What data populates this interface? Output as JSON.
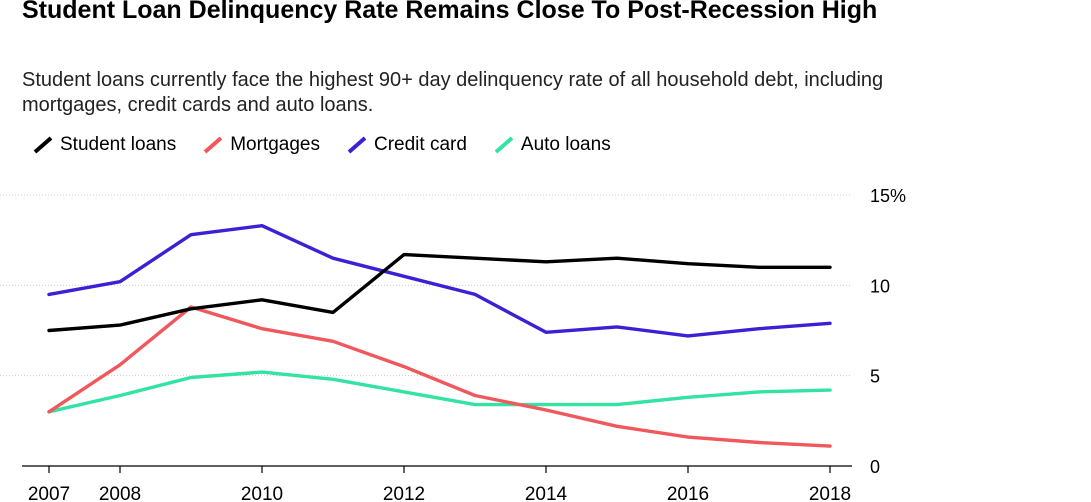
{
  "chart_data": {
    "type": "line",
    "title": "Student Loan Delinquency Rate Remains Close To Post-Recession High",
    "subtitle": "Student loans currently face the highest 90+ day delinquency rate of all household debt, including mortgages, credit cards and auto loans.",
    "x": [
      2007,
      2008,
      2009,
      2010,
      2011,
      2012,
      2013,
      2014,
      2015,
      2016,
      2017,
      2018
    ],
    "x_tick_labels": [
      "2007",
      "2008",
      "2010",
      "2012",
      "2014",
      "2016",
      "2018"
    ],
    "y_tick_labels": [
      "15%",
      "10",
      "5",
      "0"
    ],
    "ylim": [
      0,
      15
    ],
    "xlabel": "",
    "ylabel": "",
    "grid": true,
    "legend_position": "top-left",
    "series": [
      {
        "name": "Student loans",
        "color": "#000000",
        "values": [
          7.5,
          7.8,
          8.7,
          9.2,
          8.5,
          11.7,
          11.5,
          11.3,
          11.5,
          11.2,
          11.0,
          11.0
        ]
      },
      {
        "name": "Mortgages",
        "color": "#f0585e",
        "values": [
          3.0,
          5.6,
          8.8,
          7.6,
          6.9,
          5.5,
          3.9,
          3.1,
          2.2,
          1.6,
          1.3,
          1.1
        ]
      },
      {
        "name": "Credit card",
        "color": "#3a22d4",
        "values": [
          9.5,
          10.2,
          12.8,
          13.3,
          11.5,
          10.5,
          9.5,
          7.4,
          7.7,
          7.2,
          7.6,
          7.9
        ]
      },
      {
        "name": "Auto loans",
        "color": "#33e3a1",
        "values": [
          3.0,
          3.9,
          4.9,
          5.2,
          4.8,
          4.1,
          3.4,
          3.4,
          3.4,
          3.8,
          4.1,
          4.2
        ]
      }
    ]
  }
}
